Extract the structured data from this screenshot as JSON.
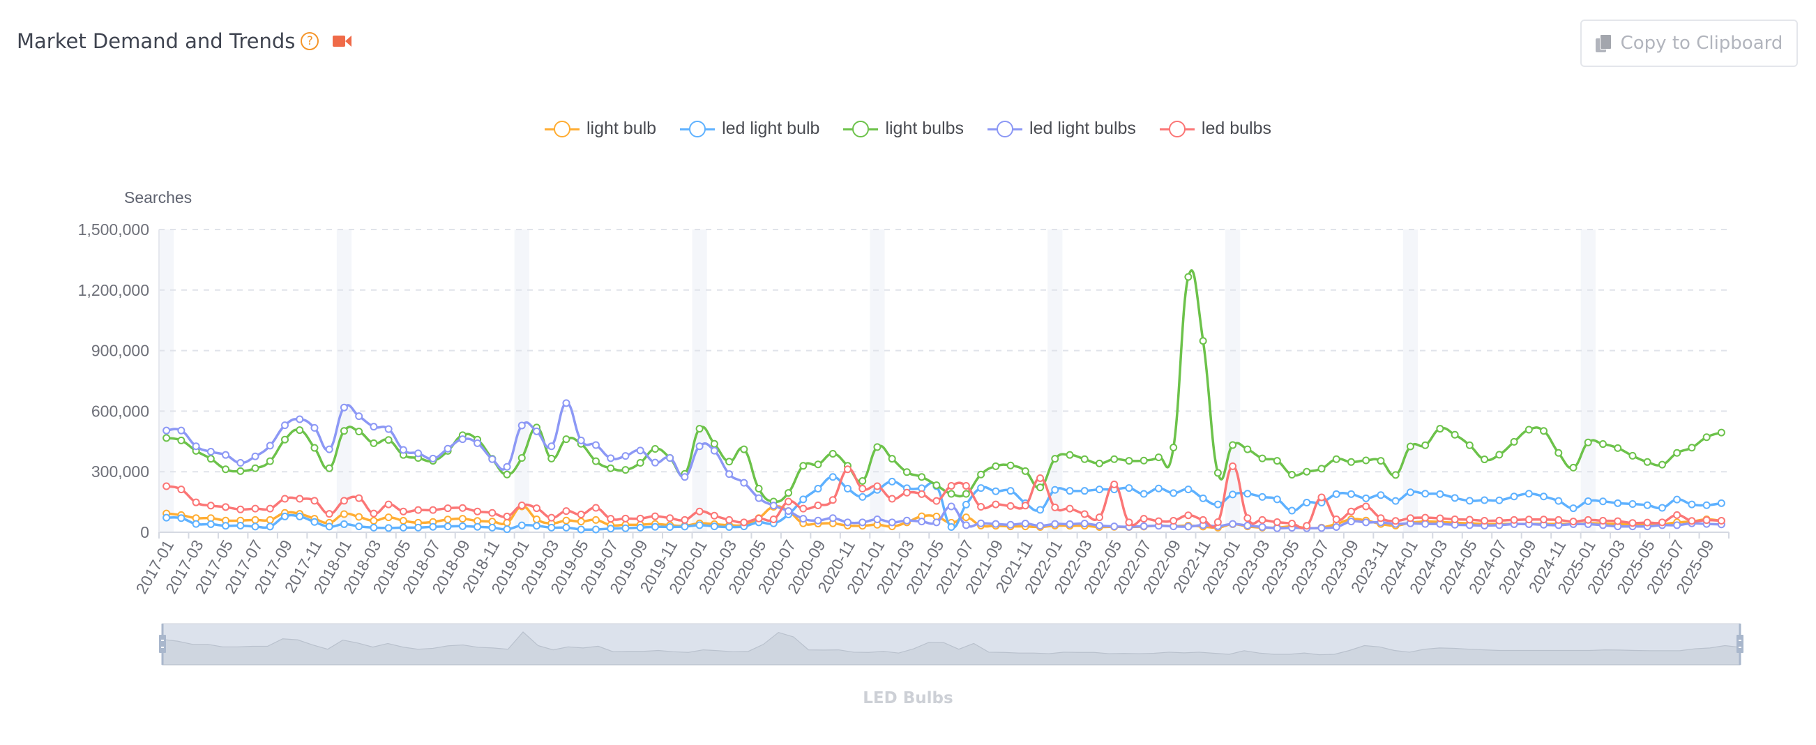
{
  "header": {
    "title": "Market Demand and Trends",
    "help_icon": "question-circle-icon",
    "video_icon": "video-camera-icon",
    "copy_button": "Copy to Clipboard",
    "copy_icon": "copy-icon"
  },
  "chart_data": {
    "type": "line",
    "ylabel": "Searches",
    "xlabel": "",
    "ylim": [
      0,
      1500000
    ],
    "yticks": [
      "0",
      "300,000",
      "600,000",
      "900,000",
      "1,200,000",
      "1,500,000"
    ],
    "grid": true,
    "legend_position": "top-center",
    "smooth": true,
    "categories": [
      "2017-01",
      "2017-02",
      "2017-03",
      "2017-04",
      "2017-05",
      "2017-06",
      "2017-07",
      "2017-08",
      "2017-09",
      "2017-10",
      "2017-11",
      "2017-12",
      "2018-01",
      "2018-02",
      "2018-03",
      "2018-04",
      "2018-05",
      "2018-06",
      "2018-07",
      "2018-08",
      "2018-09",
      "2018-10",
      "2018-11",
      "2018-12",
      "2019-01",
      "2019-02",
      "2019-03",
      "2019-04",
      "2019-05",
      "2019-06",
      "2019-07",
      "2019-08",
      "2019-09",
      "2019-10",
      "2019-11",
      "2019-12",
      "2020-01",
      "2020-02",
      "2020-03",
      "2020-04",
      "2020-05",
      "2020-06",
      "2020-07",
      "2020-08",
      "2020-09",
      "2020-10",
      "2020-11",
      "2020-12",
      "2021-01",
      "2021-02",
      "2021-03",
      "2021-04",
      "2021-05",
      "2021-06",
      "2021-07",
      "2021-08",
      "2021-09",
      "2021-10",
      "2021-11",
      "2021-12",
      "2022-01",
      "2022-02",
      "2022-03",
      "2022-04",
      "2022-05",
      "2022-06",
      "2022-07",
      "2022-08",
      "2022-09",
      "2022-10",
      "2022-11",
      "2022-12",
      "2023-01",
      "2023-02",
      "2023-03",
      "2023-04",
      "2023-05",
      "2023-06",
      "2023-07",
      "2023-08",
      "2023-09",
      "2023-10",
      "2023-11",
      "2023-12",
      "2024-01",
      "2024-02",
      "2024-03",
      "2024-04",
      "2024-05",
      "2024-06",
      "2024-07",
      "2024-08",
      "2024-09",
      "2024-10",
      "2024-11",
      "2024-12",
      "2025-01",
      "2025-02",
      "2025-03",
      "2025-04",
      "2025-05",
      "2025-06",
      "2025-07",
      "2025-08",
      "2025-09",
      "2025-10"
    ],
    "series": [
      {
        "name": "light bulb",
        "color": "#ffad33",
        "values": [
          93000,
          85000,
          70000,
          70000,
          58000,
          58000,
          61000,
          61000,
          96000,
          91000,
          67000,
          47000,
          90000,
          76000,
          57000,
          74000,
          57000,
          47000,
          51000,
          63000,
          67000,
          56000,
          53000,
          47000,
          128000,
          64000,
          44000,
          58000,
          53000,
          61000,
          35000,
          37000,
          37000,
          41000,
          35000,
          32000,
          44000,
          40000,
          35000,
          37000,
          70000,
          126000,
          105000,
          44000,
          43000,
          44000,
          33000,
          32000,
          37000,
          29000,
          49000,
          79000,
          78000,
          47000,
          74000,
          33000,
          32000,
          29000,
          29000,
          26000,
          33000,
          32000,
          32000,
          26000,
          27000,
          26000,
          28000,
          33000,
          30000,
          33000,
          28000,
          23000,
          40000,
          29000,
          23000,
          23000,
          29000,
          21000,
          23000,
          41000,
          64000,
          58000,
          41000,
          33000,
          47000,
          53000,
          51000,
          47000,
          44000,
          41000,
          41000,
          41000,
          41000,
          41000,
          41000,
          41000,
          44000,
          43000,
          41000,
          40000,
          40000,
          40000,
          49000,
          53000,
          64000,
          56000
        ]
      },
      {
        "name": "led light bulb",
        "color": "#5eb1ff",
        "values": [
          72000,
          70000,
          41000,
          40000,
          32000,
          33000,
          28000,
          28000,
          78000,
          78000,
          51000,
          28000,
          40000,
          29000,
          23000,
          21000,
          23000,
          23000,
          27000,
          29000,
          30000,
          27000,
          23000,
          15000,
          34000,
          32000,
          23000,
          23000,
          14000,
          14000,
          18000,
          20000,
          23000,
          27000,
          26000,
          28000,
          35000,
          29000,
          26000,
          29000,
          49000,
          44000,
          88000,
          163000,
          216000,
          274000,
          216000,
          175000,
          210000,
          251000,
          218000,
          218000,
          228000,
          26000,
          137000,
          219000,
          203000,
          205000,
          144000,
          111000,
          210000,
          205000,
          205000,
          212000,
          212000,
          219000,
          190000,
          217000,
          194000,
          212000,
          168000,
          138000,
          187000,
          191000,
          175000,
          163000,
          107000,
          147000,
          147000,
          189000,
          189000,
          168000,
          184000,
          155000,
          198000,
          191000,
          189000,
          170000,
          156000,
          159000,
          158000,
          177000,
          191000,
          177000,
          155000,
          119000,
          154000,
          153000,
          144000,
          140000,
          134000,
          121000,
          162000,
          138000,
          134000,
          144000
        ]
      },
      {
        "name": "light bulbs",
        "color": "#6cc24a",
        "values": [
          467000,
          455000,
          403000,
          364000,
          312000,
          303000,
          317000,
          352000,
          459000,
          506000,
          418000,
          317000,
          502000,
          499000,
          441000,
          457000,
          383000,
          368000,
          354000,
          403000,
          481000,
          459000,
          364000,
          286000,
          368000,
          519000,
          365000,
          461000,
          438000,
          352000,
          317000,
          309000,
          344000,
          413000,
          368000,
          289000,
          513000,
          438000,
          350000,
          411000,
          216000,
          152000,
          195000,
          329000,
          336000,
          389000,
          329000,
          254000,
          422000,
          364000,
          298000,
          274000,
          233000,
          190000,
          190000,
          286000,
          327000,
          331000,
          303000,
          222000,
          364000,
          383000,
          362000,
          341000,
          362000,
          354000,
          355000,
          371000,
          420000,
          1265000,
          948000,
          294000,
          432000,
          411000,
          366000,
          354000,
          285000,
          300000,
          315000,
          362000,
          348000,
          356000,
          354000,
          284000,
          425000,
          431000,
          513000,
          483000,
          431000,
          361000,
          384000,
          448000,
          508000,
          502000,
          393000,
          320000,
          445000,
          437000,
          417000,
          379000,
          348000,
          335000,
          393000,
          419000,
          471000,
          494000
        ]
      },
      {
        "name": "led light bulbs",
        "color": "#8c98f5",
        "values": [
          504000,
          504000,
          426000,
          399000,
          383000,
          344000,
          376000,
          429000,
          530000,
          560000,
          517000,
          411000,
          618000,
          575000,
          523000,
          511000,
          408000,
          391000,
          365000,
          414000,
          461000,
          441000,
          362000,
          324000,
          529000,
          500000,
          426000,
          640000,
          455000,
          432000,
          367000,
          378000,
          405000,
          345000,
          368000,
          274000,
          426000,
          404000,
          288000,
          245000,
          169000,
          132000,
          105000,
          67000,
          58000,
          70000,
          49000,
          49000,
          64000,
          49000,
          58000,
          53000,
          49000,
          128000,
          35000,
          44000,
          41000,
          37000,
          43000,
          32000,
          41000,
          40000,
          43000,
          33000,
          29000,
          27000,
          30000,
          32000,
          29000,
          28000,
          35000,
          30000,
          41000,
          33000,
          26000,
          20000,
          22000,
          20000,
          21000,
          26000,
          53000,
          49000,
          49000,
          41000,
          44000,
          41000,
          41000,
          37000,
          35000,
          33000,
          35000,
          40000,
          40000,
          37000,
          35000,
          40000,
          40000,
          35000,
          29000,
          29000,
          29000,
          35000,
          35000,
          44000,
          41000,
          39000
        ]
      },
      {
        "name": "led bulbs",
        "color": "#fb7676",
        "values": [
          228000,
          212000,
          148000,
          132000,
          125000,
          113000,
          117000,
          117000,
          166000,
          166000,
          156000,
          91000,
          156000,
          169000,
          93000,
          138000,
          103000,
          110000,
          110000,
          119000,
          120000,
          103000,
          96000,
          78000,
          133000,
          119000,
          72000,
          105000,
          88000,
          121000,
          67000,
          68000,
          68000,
          79000,
          70000,
          61000,
          103000,
          82000,
          61000,
          49000,
          68000,
          64000,
          152000,
          117000,
          133000,
          160000,
          312000,
          216000,
          228000,
          166000,
          196000,
          189000,
          155000,
          230000,
          230000,
          126000,
          138000,
          130000,
          132000,
          268000,
          123000,
          117000,
          90000,
          74000,
          237000,
          49000,
          67000,
          55000,
          57000,
          84000,
          61000,
          50000,
          327000,
          70000,
          61000,
          50000,
          43000,
          32000,
          173000,
          64000,
          103000,
          128000,
          70000,
          56000,
          70000,
          72000,
          69000,
          64000,
          62000,
          57000,
          58000,
          61000,
          63000,
          63000,
          61000,
          53000,
          61000,
          57000,
          55000,
          46000,
          48000,
          49000,
          85000,
          56000,
          60000,
          57000
        ]
      }
    ]
  },
  "slider": {
    "title": "LED Bulbs",
    "range_start_pct": 0,
    "range_end_pct": 100
  }
}
